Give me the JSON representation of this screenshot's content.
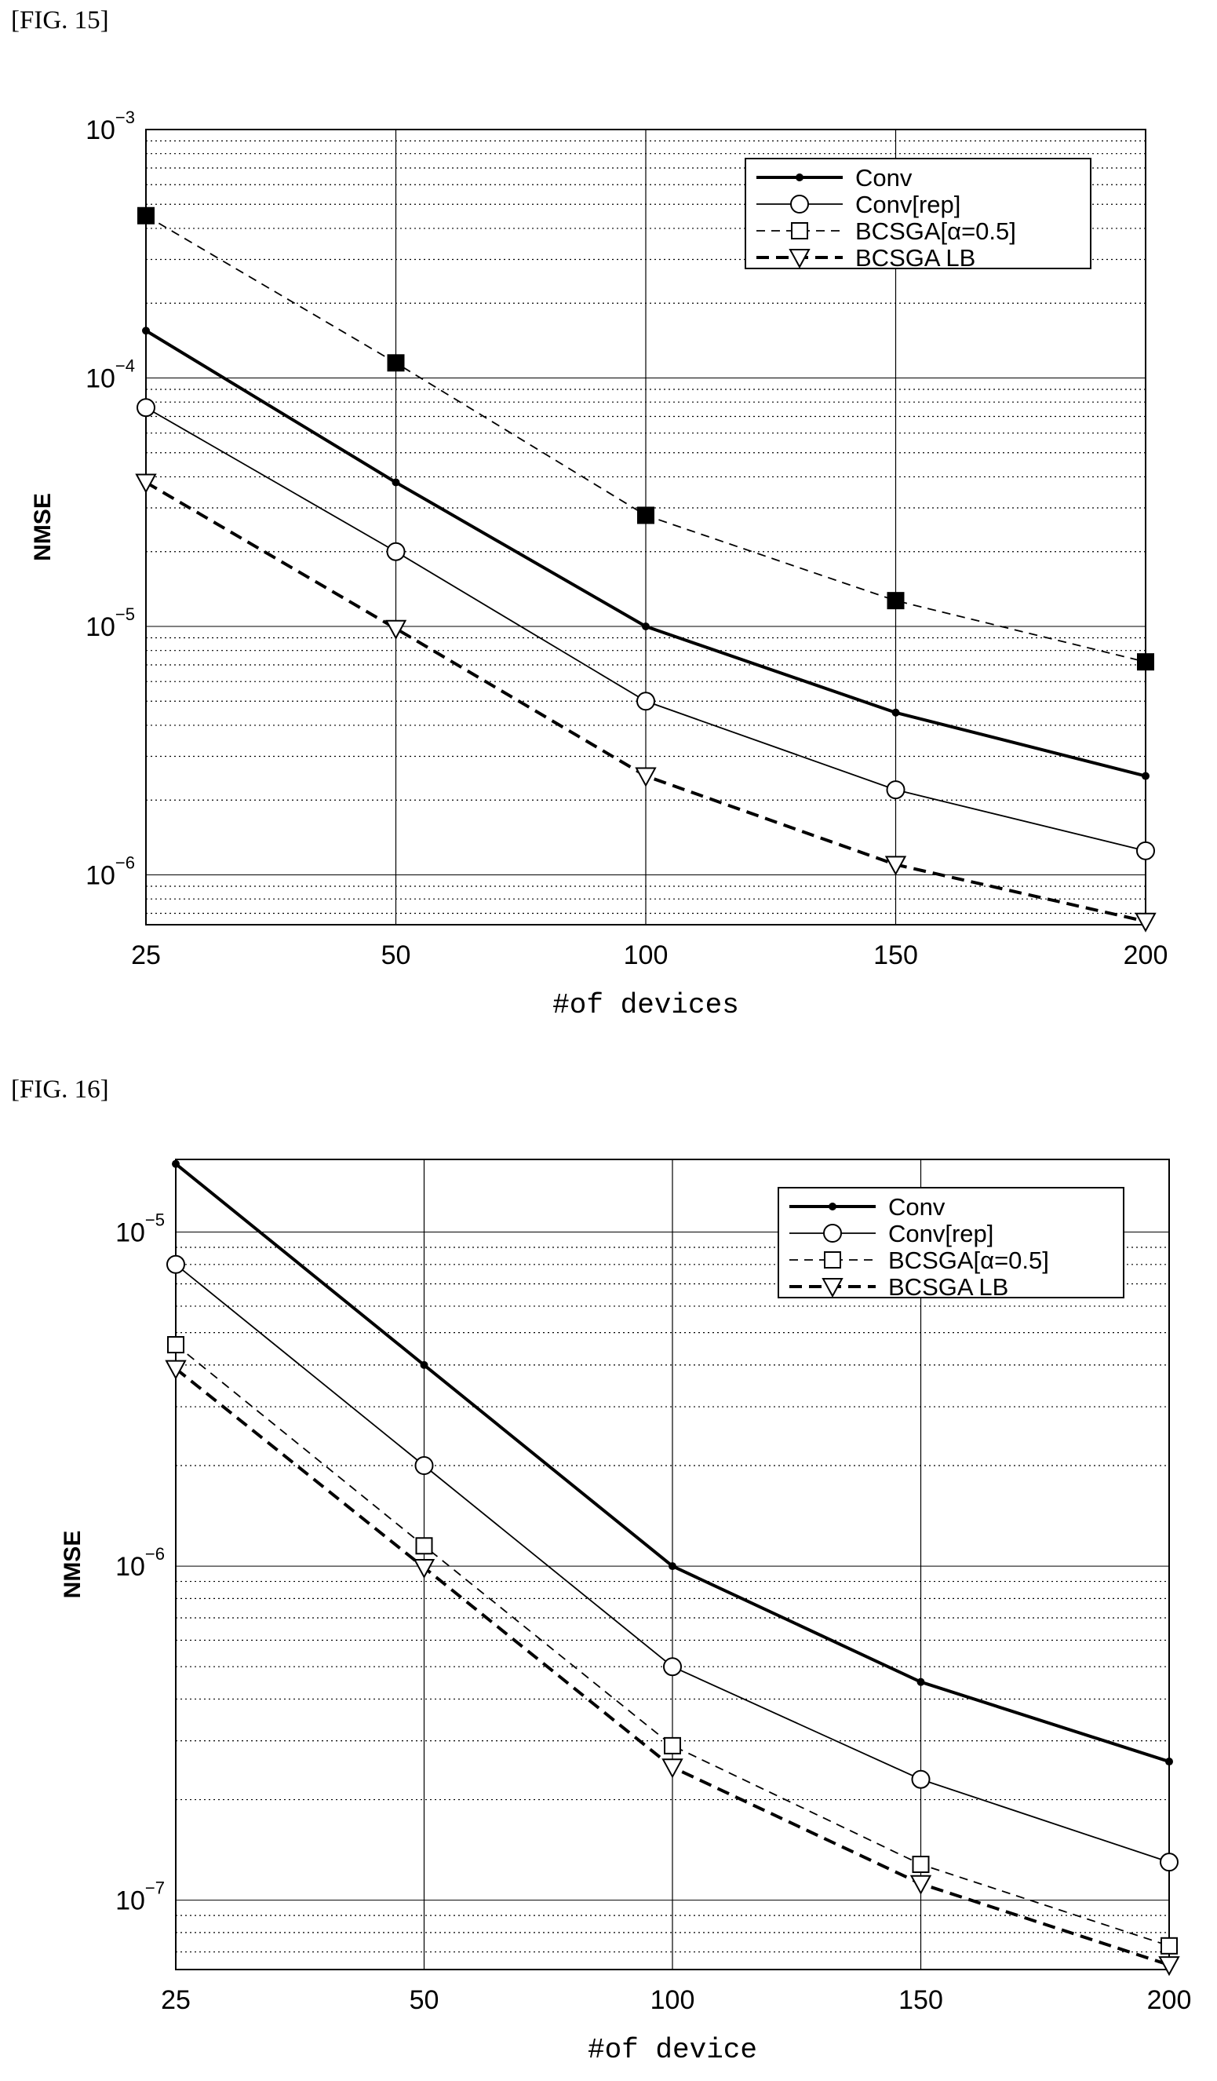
{
  "figures": [
    {
      "label": "[FIG. 15]",
      "chart_data": {
        "type": "line",
        "title": "",
        "xlabel": "#of devices",
        "ylabel": "NMSE",
        "x": [
          25,
          50,
          100,
          150,
          200
        ],
        "xtick_labels": [
          "25",
          "50",
          "100",
          "150",
          "200"
        ],
        "yscale": "log",
        "ylim": [
          6.3e-07,
          0.001
        ],
        "ytick_exponents": [
          "-3",
          "-4",
          "-5",
          "-6"
        ],
        "grid": true,
        "legend_position": "top-right",
        "series": [
          {
            "name": "Conv",
            "values": [
              0.000155,
              3.8e-05,
              1e-05,
              4.5e-06,
              2.5e-06
            ],
            "marker": "dot",
            "style": "solid-thick"
          },
          {
            "name": "Conv[rep]",
            "values": [
              7.6e-05,
              2e-05,
              5e-06,
              2.2e-06,
              1.25e-06
            ],
            "marker": "circle",
            "style": "solid-thin"
          },
          {
            "name": "BCSGA[α=0.5]",
            "values": [
              0.00045,
              0.000115,
              2.8e-05,
              1.27e-05,
              7.2e-06
            ],
            "marker": "square",
            "style": "dashed-thin",
            "marker_fill": "#000000",
            "legend_marker_fill": "#ffffff"
          },
          {
            "name": "BCSGA LB",
            "values": [
              3.8e-05,
              9.8e-06,
              2.5e-06,
              1.1e-06,
              6.5e-07
            ],
            "marker": "triangle-down",
            "style": "dashed-thick"
          }
        ]
      }
    },
    {
      "label": "[FIG. 16]",
      "chart_data": {
        "type": "line",
        "title": "",
        "xlabel": "#of device",
        "ylabel": "NMSE",
        "x": [
          25,
          50,
          100,
          150,
          200
        ],
        "xtick_labels": [
          "25",
          "50",
          "100",
          "150",
          "200"
        ],
        "yscale": "log",
        "ylim": [
          6.2e-08,
          1.65e-05
        ],
        "ytick_exponents": [
          "-5",
          "-6",
          "-7"
        ],
        "grid": true,
        "legend_position": "top-right",
        "series": [
          {
            "name": "Conv",
            "values": [
              1.6e-05,
              4e-06,
              1e-06,
              4.5e-07,
              2.6e-07
            ],
            "marker": "dot",
            "style": "solid-thick"
          },
          {
            "name": "Conv[rep]",
            "values": [
              8e-06,
              2e-06,
              5e-07,
              2.3e-07,
              1.3e-07
            ],
            "marker": "circle",
            "style": "solid-thin"
          },
          {
            "name": "BCSGA[α=0.5]",
            "values": [
              4.6e-06,
              1.15e-06,
              2.9e-07,
              1.28e-07,
              7.3e-08
            ],
            "marker": "square",
            "style": "dashed-thin",
            "marker_fill": "#ffffff",
            "legend_marker_fill": "#ffffff"
          },
          {
            "name": "BCSGA LB",
            "values": [
              3.9e-06,
              9.9e-07,
              2.5e-07,
              1.12e-07,
              6.4e-08
            ],
            "marker": "triangle-down",
            "style": "dashed-thick"
          }
        ]
      }
    }
  ]
}
